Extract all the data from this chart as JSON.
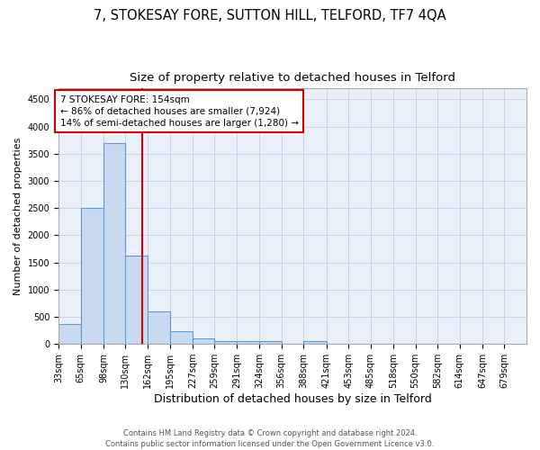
{
  "title1": "7, STOKESAY FORE, SUTTON HILL, TELFORD, TF7 4QA",
  "title2": "Size of property relative to detached houses in Telford",
  "xlabel": "Distribution of detached houses by size in Telford",
  "ylabel": "Number of detached properties",
  "bin_edges": [
    33,
    65,
    98,
    130,
    162,
    195,
    227,
    259,
    291,
    324,
    356,
    388,
    421,
    453,
    485,
    518,
    550,
    582,
    614,
    647,
    679
  ],
  "bar_heights": [
    375,
    2500,
    3700,
    1625,
    600,
    240,
    100,
    60,
    60,
    60,
    0,
    60,
    0,
    0,
    0,
    0,
    0,
    0,
    0,
    0
  ],
  "bar_color": "#c8d9f0",
  "bar_edge_color": "#5b9bd5",
  "bar_edge_width": 0.8,
  "grid_color": "#c8d4e8",
  "bg_color": "#eaf0fa",
  "red_line_x": 154,
  "red_line_color": "#cc0000",
  "annotation_text": "7 STOKESAY FORE: 154sqm\n← 86% of detached houses are smaller (7,924)\n14% of semi-detached houses are larger (1,280) →",
  "annotation_box_color": "#ffffff",
  "annotation_box_edge": "#cc0000",
  "ylim": [
    0,
    4700
  ],
  "yticks": [
    0,
    500,
    1000,
    1500,
    2000,
    2500,
    3000,
    3500,
    4000,
    4500
  ],
  "tick_labels": [
    "33sqm",
    "65sqm",
    "98sqm",
    "130sqm",
    "162sqm",
    "195sqm",
    "227sqm",
    "259sqm",
    "291sqm",
    "324sqm",
    "356sqm",
    "388sqm",
    "421sqm",
    "453sqm",
    "485sqm",
    "518sqm",
    "550sqm",
    "582sqm",
    "614sqm",
    "647sqm",
    "679sqm"
  ],
  "footnote": "Contains HM Land Registry data © Crown copyright and database right 2024.\nContains public sector information licensed under the Open Government Licence v3.0.",
  "title1_fontsize": 10.5,
  "title2_fontsize": 9.5,
  "xlabel_fontsize": 9,
  "ylabel_fontsize": 8,
  "tick_fontsize": 7,
  "annotation_fontsize": 7.5,
  "footnote_fontsize": 6
}
